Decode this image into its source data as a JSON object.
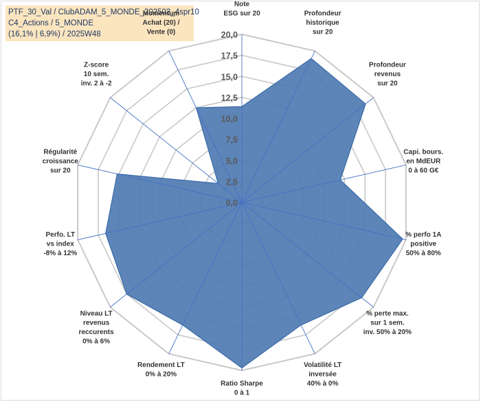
{
  "header": {
    "line1": "PTF_30_Val / ClubADAM_5_MONDE_202503_4spr10",
    "line2": "C4_Actions / 5_MONDE",
    "line3": "(16,1% | 6,9%) / 2025W48"
  },
  "chart_data": {
    "type": "radar",
    "rmax": 20,
    "ticks": [
      "0,0",
      "2,5",
      "5,0",
      "7,5",
      "10,0",
      "12,5",
      "15,0",
      "17,5",
      "20,0"
    ],
    "tick_values": [
      0,
      2.5,
      5,
      7.5,
      10,
      12.5,
      15,
      17.5,
      20
    ],
    "grid": true,
    "axes": [
      {
        "label": [
          "Note",
          "ESG sur 20"
        ],
        "value": 11.4
      },
      {
        "label": [
          "Profondeur",
          "historique",
          "sur 20"
        ],
        "value": 19.0
      },
      {
        "label": [
          "Profondeur",
          "revenus",
          "sur 20"
        ],
        "value": 18.8
      },
      {
        "label": [
          "Capi. bours.",
          "en MdEUR",
          "0 à 60 G€"
        ],
        "value": 12.0
      },
      {
        "label": [
          "% perfo 1A",
          "positive",
          "50% à 80%"
        ],
        "value": 19.6
      },
      {
        "label": [
          "% perte max.",
          "sur 1 sem.",
          "inv. 50% à 20%"
        ],
        "value": 18.2
      },
      {
        "label": [
          "Volatilité LT",
          "inversée",
          "40% à 0%"
        ],
        "value": 16.2
      },
      {
        "label": [
          "Ratio Sharpe",
          "0 à 1"
        ],
        "value": 19.7
      },
      {
        "label": [
          "Rendement LT",
          "0% à 20%"
        ],
        "value": 16.2
      },
      {
        "label": [
          "Niveau LT",
          "revenus",
          "reccurents",
          "0% à 6%"
        ],
        "value": 17.5
      },
      {
        "label": [
          "Perfo. LT",
          "vs index",
          "-8% à 12%"
        ],
        "value": 16.6
      },
      {
        "label": [
          "Régularité",
          "croissance",
          "sur 20"
        ],
        "value": 15.2
      },
      {
        "label": [
          "Z-score",
          "10 sem.",
          "inv. 2 à -2"
        ],
        "value": 3.6
      },
      {
        "label": [
          "Momentum",
          "Achat (20) /",
          "Vente (0)"
        ],
        "value": 12.5
      }
    ],
    "colors": {
      "fill": "#4f7bb2",
      "stroke": "#3a6aa8",
      "spoke": "#4472c4",
      "grid": "#c8c8c8"
    }
  }
}
